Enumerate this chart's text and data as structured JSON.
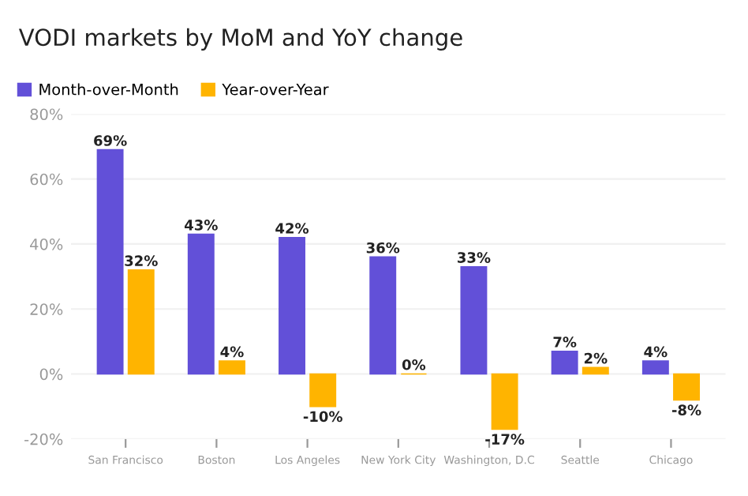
{
  "chart_data": {
    "type": "bar",
    "title": "VODI markets by MoM and YoY change",
    "categories": [
      "San Francisco",
      "Boston",
      "Los Angeles",
      "New York City",
      "Washington, D.C",
      "Seattle",
      "Chicago"
    ],
    "series": [
      {
        "name": "Month-over-Month",
        "color": "#6250d8",
        "values": [
          69,
          43,
          42,
          36,
          33,
          7,
          4
        ],
        "value_labels": [
          "69%",
          "43%",
          "42%",
          "36%",
          "33%",
          "7%",
          "4%"
        ]
      },
      {
        "name": "Year-over-Year",
        "color": "#ffb400",
        "values": [
          32,
          4,
          -10,
          0,
          -17,
          2,
          -8
        ],
        "value_labels": [
          "32%",
          "4%",
          "-10%",
          "0%",
          "-17%",
          "2%",
          "-8%"
        ]
      }
    ],
    "ylim": [
      -20,
      80
    ],
    "yticks": [
      {
        "value": -20,
        "label": "-20%"
      },
      {
        "value": 0,
        "label": "0%"
      },
      {
        "value": 20,
        "label": "20%"
      },
      {
        "value": 40,
        "label": "40%"
      },
      {
        "value": 60,
        "label": "60%"
      },
      {
        "value": 80,
        "label": "80%"
      }
    ],
    "grid": "y",
    "legend": "top left"
  }
}
